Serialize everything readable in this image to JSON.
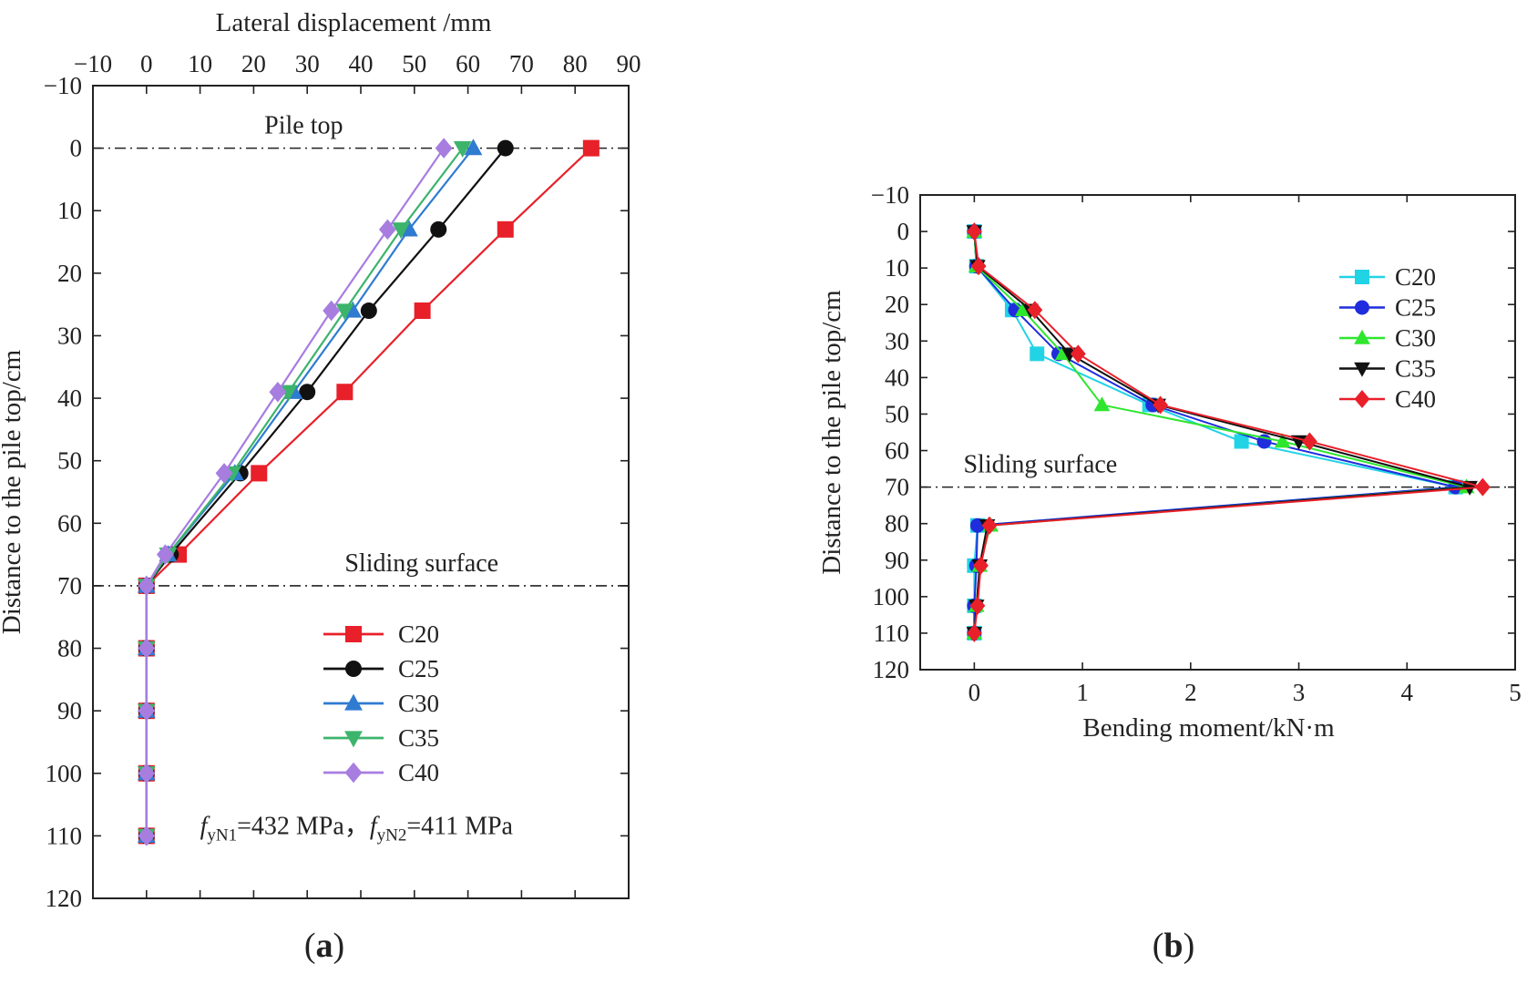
{
  "chart_data": [
    {
      "type": "line",
      "panel_label": "a",
      "xlabel": "Lateral displacement /mm",
      "ylabel": "Distance to the pile top/cm",
      "xlim": [
        -10,
        90
      ],
      "ylim": [
        120,
        -10
      ],
      "xticks": [
        -10,
        0,
        10,
        20,
        30,
        40,
        50,
        60,
        70,
        80,
        90
      ],
      "yticks": [
        -10,
        0,
        10,
        20,
        30,
        40,
        50,
        60,
        70,
        80,
        90,
        100,
        110,
        120
      ],
      "x_axis_position": "top",
      "legend_position": "lower-center",
      "annotations": {
        "pile_top": {
          "text": "Pile top",
          "y": 0
        },
        "sliding_surface": {
          "text": "Sliding surface",
          "y": 70
        },
        "note": {
          "f1_sym": "f",
          "f1_sub": "yN1",
          "f1_val": "=432 MPa，",
          "f2_sym": "f",
          "f2_sub": "yN2",
          "f2_val": "=411 MPa"
        }
      },
      "series": [
        {
          "name": "C20",
          "color": "#e8202a",
          "marker": "square",
          "x": [
            83,
            67,
            51.5,
            37,
            21,
            6,
            0,
            0,
            0,
            0,
            0
          ],
          "y": [
            0,
            13,
            26,
            39,
            52,
            65,
            70,
            80,
            90,
            100,
            110
          ]
        },
        {
          "name": "C25",
          "color": "#111111",
          "marker": "circle",
          "x": [
            67,
            54.5,
            41.5,
            30,
            17.5,
            4.5,
            0,
            0,
            0,
            0,
            0
          ],
          "y": [
            0,
            13,
            26,
            39,
            52,
            65,
            70,
            80,
            90,
            100,
            110
          ]
        },
        {
          "name": "C30",
          "color": "#2f7bd0",
          "marker": "triangle-up",
          "x": [
            61,
            49,
            38.5,
            27.5,
            16.5,
            4,
            0,
            0,
            0,
            0,
            0
          ],
          "y": [
            0,
            13,
            26,
            39,
            52,
            65,
            70,
            80,
            90,
            100,
            110
          ]
        },
        {
          "name": "C35",
          "color": "#3cb46c",
          "marker": "triangle-down",
          "x": [
            59,
            47.5,
            37,
            26.5,
            16,
            4,
            0,
            0,
            0,
            0,
            0
          ],
          "y": [
            0,
            13,
            26,
            39,
            52,
            65,
            70,
            80,
            90,
            100,
            110
          ]
        },
        {
          "name": "C40",
          "color": "#a77de0",
          "marker": "diamond",
          "x": [
            55.5,
            45,
            34.5,
            24.5,
            14.5,
            3.5,
            0,
            0,
            0,
            0,
            0
          ],
          "y": [
            0,
            13,
            26,
            39,
            52,
            65,
            70,
            80,
            90,
            100,
            110
          ]
        }
      ]
    },
    {
      "type": "line",
      "panel_label": "b",
      "xlabel": "Bending moment/kN·m",
      "ylabel": "Distance to the pile top/cm",
      "xlim": [
        -0.5,
        5
      ],
      "ylim": [
        120,
        -10
      ],
      "xticks": [
        0,
        1,
        2,
        3,
        4,
        5
      ],
      "yticks": [
        -10,
        0,
        10,
        20,
        30,
        40,
        50,
        60,
        70,
        80,
        90,
        100,
        110,
        120
      ],
      "x_axis_position": "bottom",
      "legend_position": "top-right",
      "annotations": {
        "sliding_surface": {
          "text": "Sliding surface",
          "y": 70
        }
      },
      "series": [
        {
          "name": "C20",
          "color": "#22d3e6",
          "marker": "square",
          "x": [
            0.0,
            0.02,
            0.35,
            0.58,
            1.62,
            2.47,
            4.45,
            0.03,
            0.0,
            0.0,
            0.0
          ],
          "y": [
            0,
            9.5,
            21.5,
            33.5,
            47.5,
            57.5,
            70,
            80.5,
            91.5,
            102.5,
            110
          ]
        },
        {
          "name": "C25",
          "color": "#1f2ddc",
          "marker": "circle",
          "x": [
            0.0,
            0.02,
            0.38,
            0.78,
            1.65,
            2.68,
            4.45,
            0.03,
            0.02,
            0.0,
            0.0
          ],
          "y": [
            0,
            9.5,
            21.5,
            33.5,
            47.5,
            57.5,
            70,
            80.5,
            91.5,
            102.5,
            110
          ]
        },
        {
          "name": "C30",
          "color": "#2ee62e",
          "marker": "triangle-up",
          "x": [
            0.0,
            0.02,
            0.45,
            0.82,
            1.18,
            2.85,
            4.55,
            0.15,
            0.05,
            0.02,
            0.0
          ],
          "y": [
            0,
            9.5,
            21.5,
            33.5,
            47.5,
            57.5,
            70,
            80.5,
            91.5,
            102.5,
            110
          ]
        },
        {
          "name": "C35",
          "color": "#111111",
          "marker": "triangle-down",
          "x": [
            0.0,
            0.03,
            0.52,
            0.88,
            1.7,
            3.0,
            4.58,
            0.12,
            0.05,
            0.02,
            0.0
          ],
          "y": [
            0,
            9.5,
            21.5,
            33.5,
            47.5,
            57.5,
            70,
            80.5,
            91.5,
            102.5,
            110
          ]
        },
        {
          "name": "C40",
          "color": "#e8202a",
          "marker": "diamond",
          "x": [
            0.0,
            0.04,
            0.56,
            0.96,
            1.72,
            3.1,
            4.7,
            0.14,
            0.06,
            0.03,
            0.0
          ],
          "y": [
            0,
            9.5,
            21.5,
            33.5,
            47.5,
            57.5,
            70,
            80.5,
            91.5,
            102.5,
            110
          ]
        }
      ]
    }
  ]
}
